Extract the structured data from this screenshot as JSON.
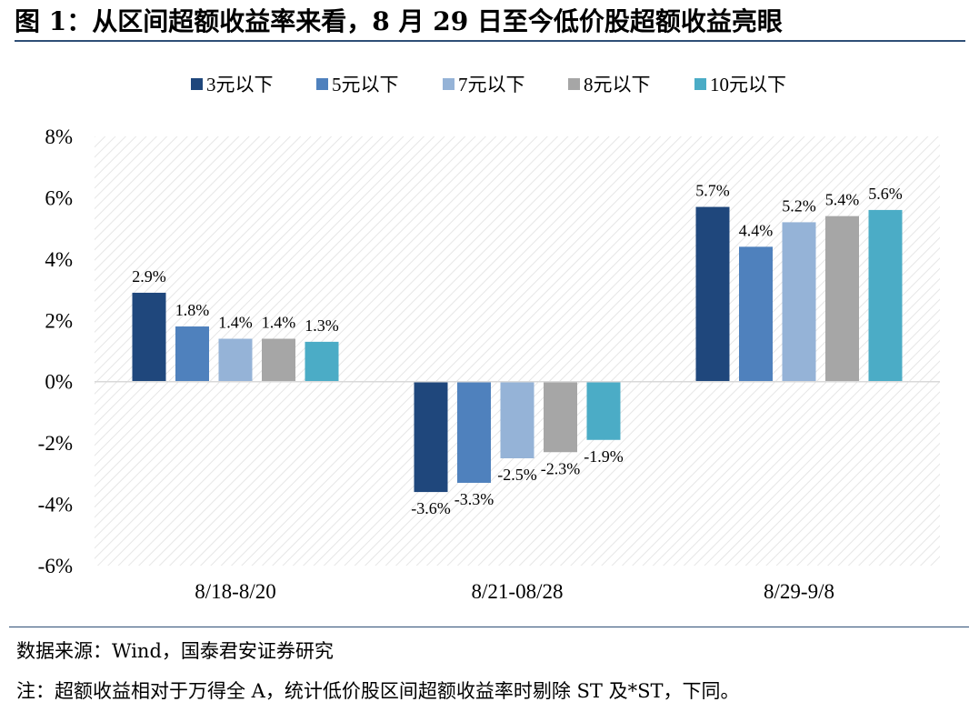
{
  "title": "图 1：从区间超额收益率来看，8 月 29 日至今低价股超额收益亮眼",
  "source": "数据来源：Wind，国泰君安证券研究",
  "note": "注：超额收益相对于万得全 A，统计低价股区间超额收益率时剔除 ST 及*ST，下同。",
  "chart_data": {
    "type": "bar",
    "categories": [
      "8/18-8/20",
      "8/21-08/28",
      "8/29-9/8"
    ],
    "series": [
      {
        "name": "3元以下",
        "color": "#1f477c",
        "values": [
          2.9,
          -3.6,
          5.7
        ]
      },
      {
        "name": "5元以下",
        "color": "#4f81bd",
        "values": [
          1.8,
          -3.3,
          4.4
        ]
      },
      {
        "name": "7元以下",
        "color": "#95b3d7",
        "values": [
          1.4,
          -2.5,
          5.2
        ]
      },
      {
        "name": "8元以下",
        "color": "#a6a6a6",
        "values": [
          1.4,
          -2.3,
          5.4
        ]
      },
      {
        "name": "10元以下",
        "color": "#4bacc6",
        "values": [
          1.3,
          -1.9,
          5.6
        ]
      }
    ],
    "value_labels": [
      [
        "2.9%",
        "-3.6%",
        "5.7%"
      ],
      [
        "1.8%",
        "-3.3%",
        "4.4%"
      ],
      [
        "1.4%",
        "-2.5%",
        "5.2%"
      ],
      [
        "1.4%",
        "-2.3%",
        "5.4%"
      ],
      [
        "1.3%",
        "-1.9%",
        "5.6%"
      ]
    ],
    "yticks": [
      -6,
      -4,
      -2,
      0,
      2,
      4,
      6,
      8
    ],
    "ytick_labels": [
      "-6%",
      "-4%",
      "-2%",
      "0%",
      "2%",
      "4%",
      "6%",
      "8%"
    ],
    "ylim": [
      -6,
      8
    ],
    "unit": "%",
    "legend_position": "top-center",
    "grid": false,
    "background": "hatched"
  }
}
